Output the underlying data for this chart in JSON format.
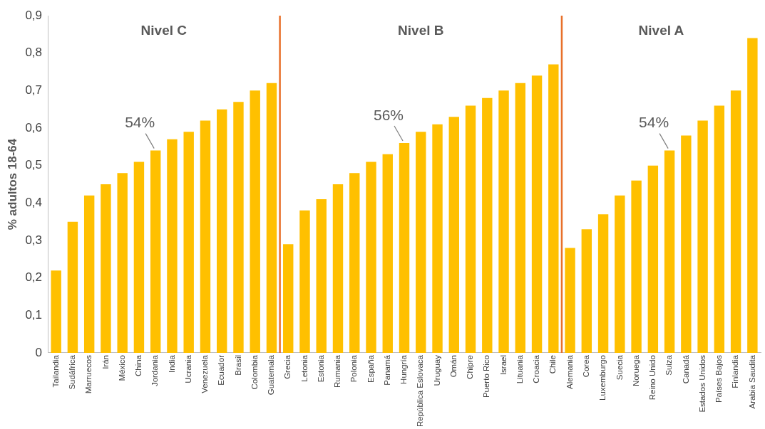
{
  "chart_data": {
    "type": "bar",
    "ylabel": "% adultos 18-64",
    "categories": [
      "Tailandia",
      "Sudáfrica",
      "Marruecos",
      "Irán",
      "México",
      "China",
      "Jordania",
      "India",
      "Ucrania",
      "Venezuela",
      "Ecuador",
      "Brasil",
      "Colombia",
      "Guatemala",
      "Grecia",
      "Letonia",
      "Estonia",
      "Rumania",
      "Polonia",
      "España",
      "Panamá",
      "Hungría",
      "República Eslovaca",
      "Uruguay",
      "Omán",
      "Chipre",
      "Puerto Rico",
      "Israel",
      "Lituania",
      "Croacia",
      "Chile",
      "Alemania",
      "Corea",
      "Luxemburgo",
      "Suecia",
      "Noruega",
      "Reino Unido",
      "Suiza",
      "Canadá",
      "Estados Unidos",
      "Países Bajos",
      "Finlandia",
      "Arabia Saudita"
    ],
    "values": [
      0.22,
      0.35,
      0.42,
      0.45,
      0.48,
      0.51,
      0.54,
      0.57,
      0.59,
      0.62,
      0.65,
      0.67,
      0.7,
      0.72,
      0.29,
      0.38,
      0.41,
      0.45,
      0.48,
      0.51,
      0.53,
      0.56,
      0.59,
      0.61,
      0.63,
      0.66,
      0.68,
      0.7,
      0.72,
      0.74,
      0.77,
      0.28,
      0.33,
      0.37,
      0.42,
      0.46,
      0.5,
      0.54,
      0.58,
      0.62,
      0.66,
      0.7,
      0.84
    ],
    "color": "#ffc000",
    "ylim": [
      0,
      0.9
    ],
    "yticks": [
      0,
      {
        "value": 0.1,
        "label": "0,1"
      },
      {
        "value": 0.2,
        "label": "0,2"
      },
      {
        "value": 0.3,
        "label": "0,3"
      },
      {
        "value": 0.4,
        "label": "0,4"
      },
      {
        "value": 0.5,
        "label": "0,5"
      },
      {
        "value": 0.6,
        "label": "0,6"
      },
      {
        "value": 0.7,
        "label": "0,7"
      },
      {
        "value": 0.8,
        "label": "0,8"
      },
      {
        "value": 0.9,
        "label": "0,9"
      }
    ],
    "grid": false,
    "legend": false,
    "annotations": [
      "Nivel C",
      "Nivel B",
      "Nivel A",
      {
        "text": "54%",
        "x": "Jordania",
        "y": 0.54
      },
      {
        "text": "56%",
        "x": "Hungría",
        "y": 0.56
      },
      {
        "text": "54%",
        "x": "Suiza",
        "y": 0.54
      }
    ]
  }
}
